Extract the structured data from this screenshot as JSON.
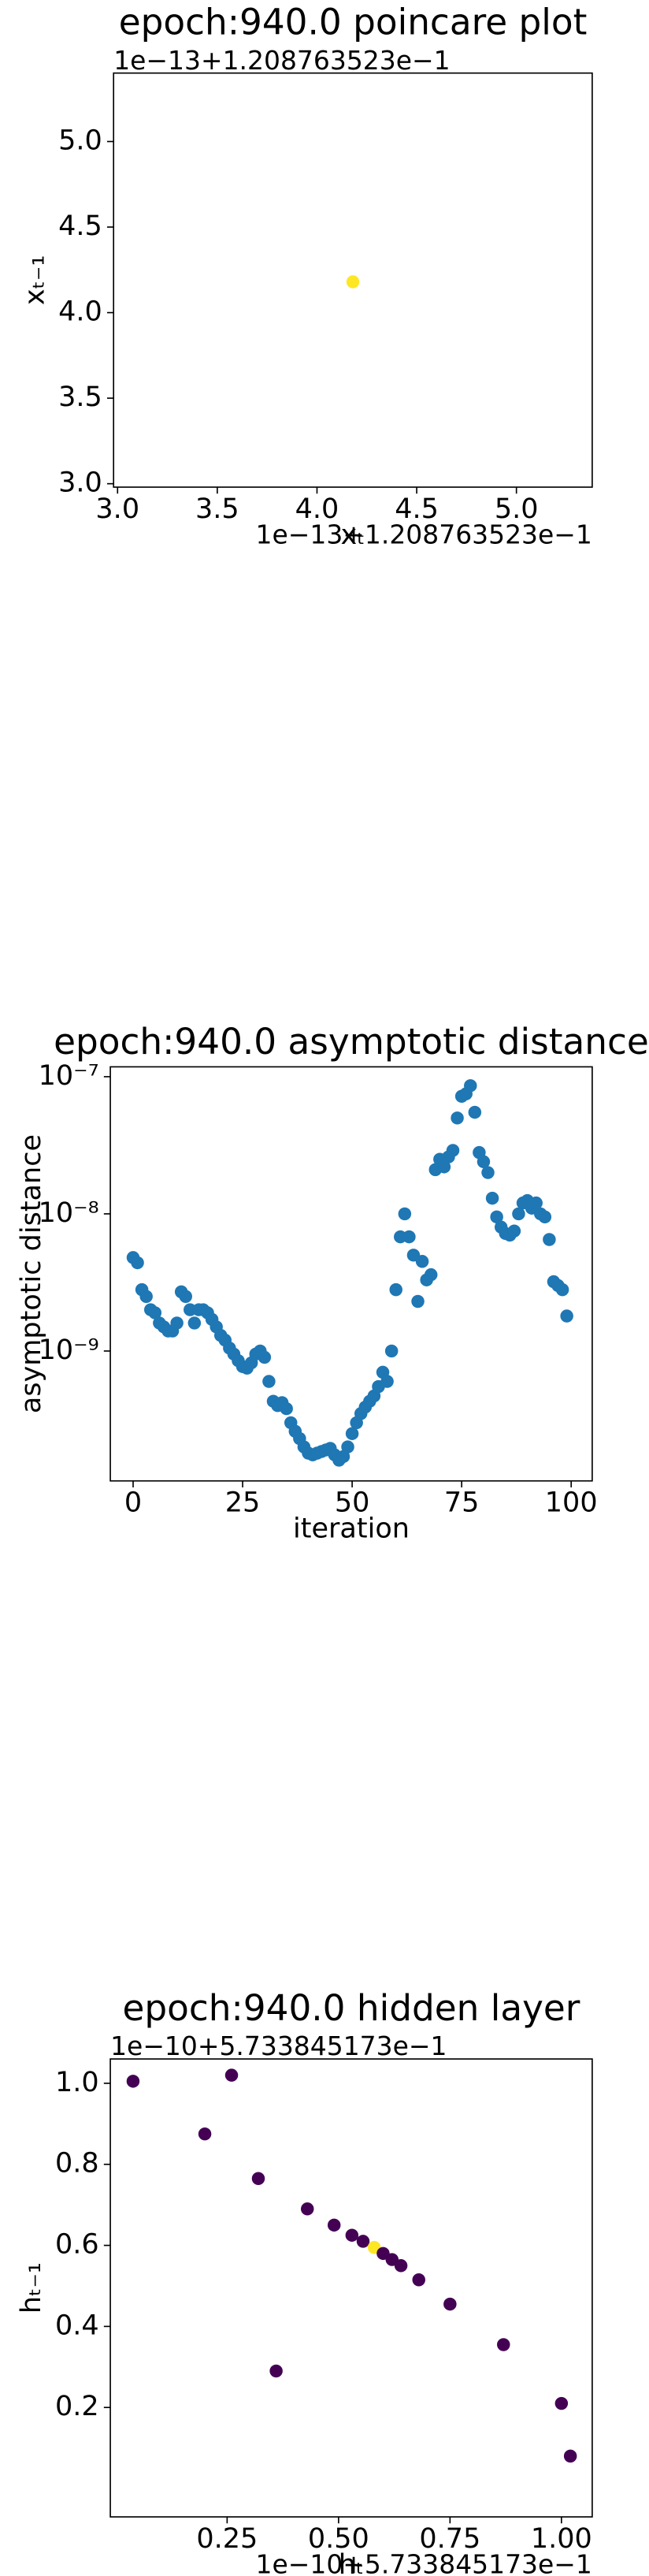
{
  "chart_data": [
    {
      "type": "scatter",
      "title": "epoch:940.0 poincare plot",
      "xlabel": "xₜ",
      "ylabel": "xₜ₋₁",
      "xoffset": "1e−13+1.208763523e−1",
      "yoffset": "1e−13+1.208763523e−1",
      "xlim": [
        2.98,
        5.38
      ],
      "ylim": [
        2.98,
        5.4
      ],
      "xticks": [
        {
          "value": 3,
          "label": "3.0"
        },
        3.5,
        {
          "value": 4,
          "label": "4.0"
        },
        4.5,
        {
          "value": 5,
          "label": "5.0"
        }
      ],
      "yticks": [
        {
          "value": 3,
          "label": "3.0"
        },
        3.5,
        {
          "value": 4,
          "label": "4.0"
        },
        4.5,
        {
          "value": 5,
          "label": "5.0"
        }
      ],
      "series": [
        {
          "color": "#fde725",
          "x": [
            4.18
          ],
          "values": [
            4.18
          ]
        }
      ]
    },
    {
      "type": "scatter",
      "title": "epoch:940.0 asymptotic distance",
      "xlabel": "iteration",
      "ylabel": "asymptotic distance",
      "log_y": true,
      "xlim": [
        -5.2,
        104.8
      ],
      "ylim": [
        1.13e-10,
        1.18e-07
      ],
      "xticks": [
        0,
        25,
        50,
        75,
        100
      ],
      "yticks": [
        {
          "value": 1e-09,
          "label": "10⁻⁹"
        },
        {
          "value": 1e-08,
          "label": "10⁻⁸"
        },
        {
          "value": 1e-07,
          "label": "10⁻⁷"
        }
      ],
      "series": [
        {
          "color": "#1f77b4",
          "x": [
            0,
            1,
            2,
            3,
            4,
            5,
            6,
            7,
            8,
            9,
            10,
            11,
            12,
            13,
            14,
            15,
            16,
            17,
            18,
            19,
            20,
            21,
            22,
            23,
            24,
            25,
            26,
            27,
            28,
            29,
            30,
            31,
            32,
            33,
            34,
            35,
            36,
            37,
            38,
            39,
            40,
            41,
            42,
            43,
            44,
            45,
            46,
            47,
            48,
            49,
            50,
            51,
            52,
            53,
            54,
            55,
            56,
            57,
            58,
            59,
            60,
            61,
            62,
            63,
            64,
            65,
            66,
            67,
            68,
            69,
            70,
            71,
            72,
            73,
            74,
            75,
            76,
            77,
            78,
            79,
            80,
            81,
            82,
            83,
            84,
            85,
            86,
            87,
            88,
            89,
            90,
            91,
            92,
            93,
            94,
            95,
            96,
            97,
            98,
            99
          ],
          "values": [
            4.8e-09,
            4.4e-09,
            2.8e-09,
            2.5e-09,
            2e-09,
            1.9e-09,
            1.6e-09,
            1.5e-09,
            1.4e-09,
            1.4e-09,
            1.6e-09,
            2.7e-09,
            2.5e-09,
            2e-09,
            1.6e-09,
            2e-09,
            2e-09,
            1.9e-09,
            1.7e-09,
            1.5e-09,
            1.3e-09,
            1.2e-09,
            1.05e-09,
            9.5e-10,
            8.5e-10,
            7.7e-10,
            7.5e-10,
            8.2e-10,
            9.5e-10,
            1e-09,
            9e-10,
            6e-10,
            4.3e-10,
            4e-10,
            4.2e-10,
            3.8e-10,
            3e-10,
            2.6e-10,
            2.3e-10,
            2e-10,
            1.8e-10,
            1.75e-10,
            1.8e-10,
            1.85e-10,
            1.9e-10,
            1.95e-10,
            1.75e-10,
            1.6e-10,
            1.7e-10,
            2e-10,
            2.5e-10,
            3e-10,
            3.5e-10,
            3.9e-10,
            4.3e-10,
            4.7e-10,
            5.5e-10,
            7e-10,
            6e-10,
            1e-09,
            2.8e-09,
            6.8e-09,
            1e-08,
            6.8e-09,
            5e-09,
            2.3e-09,
            4.5e-09,
            3.3e-09,
            3.6e-09,
            2.1e-08,
            2.5e-08,
            2.2e-08,
            2.6e-08,
            2.9e-08,
            5e-08,
            7.2e-08,
            7.5e-08,
            8.6e-08,
            5.5e-08,
            2.8e-08,
            2.4e-08,
            2e-08,
            1.3e-08,
            9.5e-09,
            8e-09,
            7.2e-09,
            7e-09,
            7.5e-09,
            1e-08,
            1.2e-08,
            1.25e-08,
            1.1e-08,
            1.2e-08,
            1e-08,
            9.5e-09,
            6.5e-09,
            3.2e-09,
            3e-09,
            2.8e-09,
            1.8e-09
          ]
        }
      ]
    },
    {
      "type": "scatter",
      "title": "epoch:940.0 hidden layer",
      "xlabel": "hₜ",
      "ylabel": "hₜ₋₁",
      "xoffset": "1e−10+5.733845173e−1",
      "yoffset": "1e−10+5.733845173e−1",
      "xlim": [
        -0.012,
        1.069
      ],
      "ylim": [
        -0.07,
        1.06
      ],
      "xticks": [
        0.25,
        {
          "value": 0.5,
          "label": "0.50"
        },
        0.75,
        {
          "value": 1,
          "label": "1.00"
        }
      ],
      "yticks": [
        0.2,
        0.4,
        0.6,
        0.8,
        {
          "value": 1,
          "label": "1.0"
        }
      ],
      "series": [
        {
          "color": "#440154",
          "x": [
            0.039,
            0.2,
            0.26,
            0.32,
            0.36,
            0.43,
            0.49,
            0.53,
            0.555,
            0.58,
            0.6,
            0.62,
            0.64,
            0.68,
            0.75,
            0.87,
            1.0,
            1.02
          ],
          "values": [
            1.005,
            0.875,
            1.02,
            0.765,
            0.29,
            0.69,
            0.65,
            0.625,
            0.61,
            0.595,
            0.58,
            0.565,
            0.55,
            0.515,
            0.455,
            0.355,
            0.21,
            0.08
          ],
          "colors": [
            "#440154",
            "#440154",
            "#440154",
            "#440154",
            "#440154",
            "#440154",
            "#440154",
            "#440154",
            "#440154",
            "#fde725",
            "#440154",
            "#440154",
            "#440154",
            "#440154",
            "#440154",
            "#440154",
            "#440154",
            "#440154"
          ]
        }
      ]
    }
  ]
}
